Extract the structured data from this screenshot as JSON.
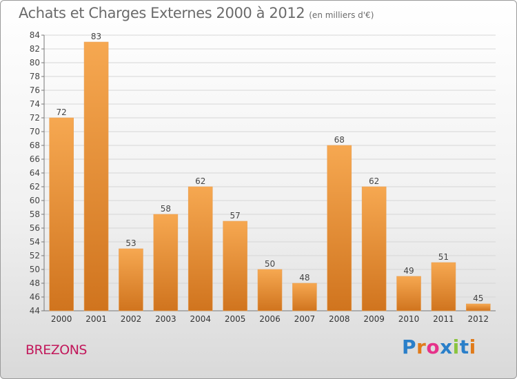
{
  "header": {
    "title": "Achats et Charges Externes 2000 à 2012",
    "subtitle": "(en milliers d'€)"
  },
  "footer": {
    "commune": "BREZONS",
    "logo_text": "Proxiti"
  },
  "colors": {
    "bar_top": "#f6a851",
    "bar_bottom": "#d0741e",
    "title": "#6b6b6b",
    "commune": "#c2185b",
    "logo": [
      "#2a7fc9",
      "#e07b1a",
      "#e6328a",
      "#2a7fc9",
      "#8ac43f",
      "#2a7fc9",
      "#e07b1a"
    ]
  },
  "chart_data": {
    "type": "bar",
    "categories": [
      "2000",
      "2001",
      "2002",
      "2003",
      "2004",
      "2005",
      "2006",
      "2007",
      "2008",
      "2009",
      "2010",
      "2011",
      "2012"
    ],
    "values": [
      72,
      83,
      53,
      58,
      62,
      57,
      50,
      48,
      68,
      62,
      49,
      51,
      45
    ],
    "title": "Achats et Charges Externes 2000 à 2012",
    "subtitle": "(en milliers d'€)",
    "ylim": [
      44,
      84
    ],
    "yticks": [
      44,
      46,
      48,
      50,
      52,
      54,
      56,
      58,
      60,
      62,
      64,
      66,
      68,
      70,
      72,
      74,
      76,
      78,
      80,
      82,
      84
    ],
    "grid": true,
    "data_labels": true
  }
}
